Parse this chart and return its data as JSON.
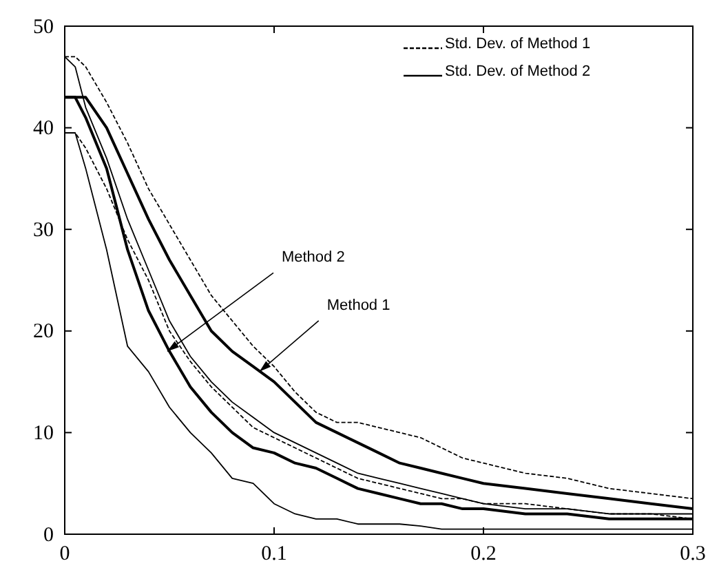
{
  "chart_data": {
    "type": "line",
    "x": [
      0,
      0.005,
      0.01,
      0.02,
      0.03,
      0.04,
      0.05,
      0.06,
      0.07,
      0.08,
      0.09,
      0.1,
      0.11,
      0.12,
      0.13,
      0.14,
      0.15,
      0.16,
      0.17,
      0.18,
      0.19,
      0.2,
      0.22,
      0.24,
      0.26,
      0.28,
      0.3
    ],
    "series": [
      {
        "color": "#000000",
        "values": [
          43,
          43,
          43,
          40,
          35.5,
          31,
          27,
          23.5,
          20,
          18,
          16.5,
          15,
          13,
          11,
          10,
          9,
          8,
          7,
          6.5,
          6,
          5.5,
          5,
          4.5,
          4,
          3.5,
          3,
          2.5
        ]
      },
      {
        "name": "Std. Dev. of Method 1",
        "color": "#000000",
        "line_style": "dashed",
        "values": [
          47,
          47,
          46,
          42.5,
          38.5,
          34,
          30.5,
          27,
          23.5,
          21,
          18.5,
          16.5,
          14,
          12,
          11,
          11,
          10.5,
          10,
          9.5,
          8.5,
          7.5,
          7,
          6,
          5.5,
          4.5,
          4,
          3.5
        ]
      },
      {
        "color": "#000000",
        "line_style": "dashed",
        "values": [
          39.5,
          39.5,
          38,
          34,
          29,
          25,
          20,
          17,
          14.5,
          12.5,
          10.5,
          9.5,
          8.5,
          7.5,
          6.5,
          5.5,
          5,
          4.5,
          4,
          3.5,
          3.5,
          3,
          3,
          2.5,
          2,
          2,
          1.5
        ]
      },
      {
        "color": "#000000",
        "values": [
          43,
          43,
          41,
          36,
          28,
          22,
          18,
          14.5,
          12,
          10,
          8.5,
          8,
          7,
          6.5,
          5.5,
          4.5,
          4,
          3.5,
          3,
          3,
          2.5,
          2.5,
          2,
          2,
          1.5,
          1.5,
          1.5
        ]
      },
      {
        "name": "Std. Dev. of Method 2",
        "color": "#000000",
        "values": [
          47,
          46,
          42,
          37,
          31,
          26,
          21,
          17.5,
          15,
          13,
          11.5,
          10,
          9,
          8,
          7,
          6,
          5.5,
          5,
          4.5,
          4,
          3.5,
          3,
          2.5,
          2.5,
          2,
          2,
          2
        ]
      },
      {
        "color": "#000000",
        "values": [
          39.5,
          39.5,
          36,
          28,
          18.5,
          16,
          12.5,
          10,
          8,
          5.5,
          5,
          3,
          2,
          1.5,
          1.5,
          1,
          1,
          1,
          0.8,
          0.5,
          0.5,
          0.5,
          0.5,
          0.5,
          0.5,
          0.5,
          0.5
        ]
      }
    ],
    "xlim": [
      0,
      0.3
    ],
    "ylim": [
      0,
      50
    ],
    "xticks": [
      0,
      0.1,
      0.2,
      0.3
    ],
    "yticks": [
      0,
      10,
      20,
      30,
      40,
      50
    ],
    "legend": "top right",
    "annotations": [
      {
        "text": "Method 2",
        "x": 0.049,
        "y": 18
      },
      {
        "text": "Method 1",
        "x": 0.093,
        "y": 16
      }
    ]
  }
}
